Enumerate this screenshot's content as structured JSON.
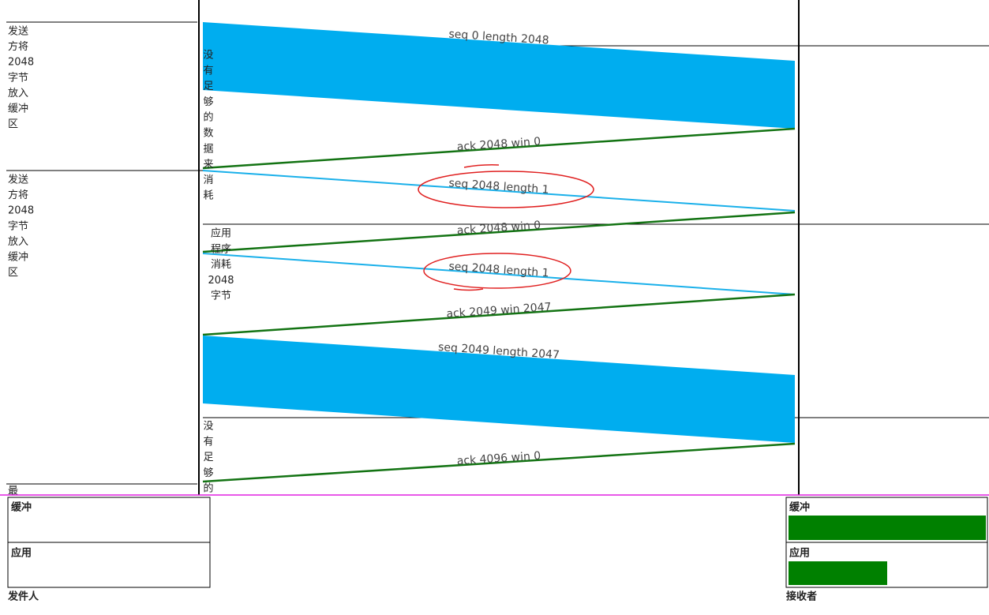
{
  "sender_notes": [
    {
      "lines": [
        "发送",
        "方将",
        "2048",
        "字节",
        "放入",
        "缓冲",
        "区"
      ]
    },
    {
      "lines": [
        "发送",
        "方将",
        "2048",
        "字节",
        "放入",
        "缓冲",
        "区"
      ]
    },
    {
      "lines": [
        "最"
      ]
    }
  ],
  "middle_notes": [
    {
      "lines": [
        "没",
        "有",
        "足",
        "够",
        "的",
        "数",
        "据",
        "来",
        "消",
        "耗"
      ]
    },
    {
      "lines": [
        "应用",
        "程序",
        "消耗",
        "2048",
        "字节"
      ]
    },
    {
      "lines": [
        "没",
        "有",
        "足",
        "够",
        "的"
      ]
    }
  ],
  "messages": [
    {
      "label": "seq 0 length 2048"
    },
    {
      "label": "ack 2048 win 0"
    },
    {
      "label": "seq 2048 length 1"
    },
    {
      "label": "ack 2048 win 0"
    },
    {
      "label": "seq 2048 length 1"
    },
    {
      "label": "ack 2049 win 2047"
    },
    {
      "label": "seq 2049 length 2047"
    },
    {
      "label": "ack 4096 win 0"
    }
  ],
  "sender_panel": {
    "buffer": "缓冲",
    "app": "应用",
    "name": "发件人"
  },
  "receiver_panel": {
    "buffer": "缓冲",
    "app": "应用",
    "name": "接收者"
  }
}
